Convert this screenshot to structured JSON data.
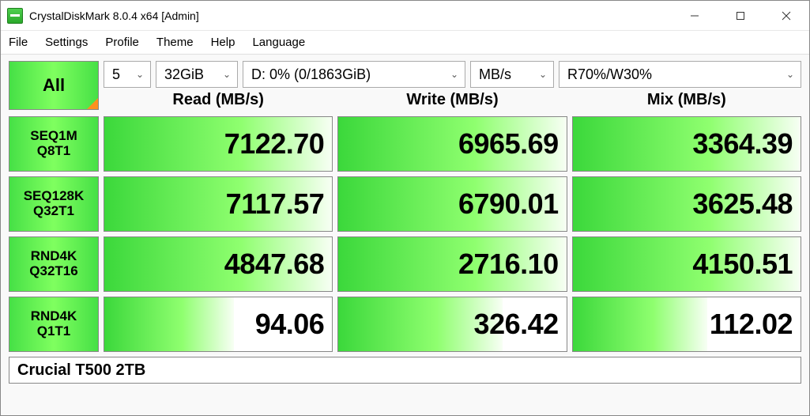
{
  "window": {
    "title": "CrystalDiskMark 8.0.4 x64 [Admin]"
  },
  "menu": {
    "items": [
      "File",
      "Settings",
      "Profile",
      "Theme",
      "Help",
      "Language"
    ]
  },
  "controls": {
    "all_label": "All",
    "runs": "5",
    "size": "32GiB",
    "drive": "D: 0% (0/1863GiB)",
    "unit": "MB/s",
    "mix": "R70%/W30%"
  },
  "columns": {
    "read": "Read (MB/s)",
    "write": "Write (MB/s)",
    "mix": "Mix (MB/s)"
  },
  "tests": [
    {
      "line1": "SEQ1M",
      "line2": "Q8T1",
      "read": "7122.70",
      "write": "6965.69",
      "mix": "3364.39",
      "fill_read": 100,
      "fill_write": 100,
      "fill_mix": 100
    },
    {
      "line1": "SEQ128K",
      "line2": "Q32T1",
      "read": "7117.57",
      "write": "6790.01",
      "mix": "3625.48",
      "fill_read": 100,
      "fill_write": 100,
      "fill_mix": 100
    },
    {
      "line1": "RND4K",
      "line2": "Q32T16",
      "read": "4847.68",
      "write": "2716.10",
      "mix": "4150.51",
      "fill_read": 100,
      "fill_write": 100,
      "fill_mix": 100
    },
    {
      "line1": "RND4K",
      "line2": "Q1T1",
      "read": "94.06",
      "write": "326.42",
      "mix": "112.02",
      "fill_read": 57,
      "fill_write": 72,
      "fill_mix": 59
    }
  ],
  "footer": {
    "drive_name": "Crucial T500 2TB"
  },
  "colors": {
    "green_grad_start": "#46e046",
    "green_grad_mid": "#7fff5f",
    "corner_accent": "#ff9020",
    "border": "#888888",
    "background": "#ffffff"
  }
}
